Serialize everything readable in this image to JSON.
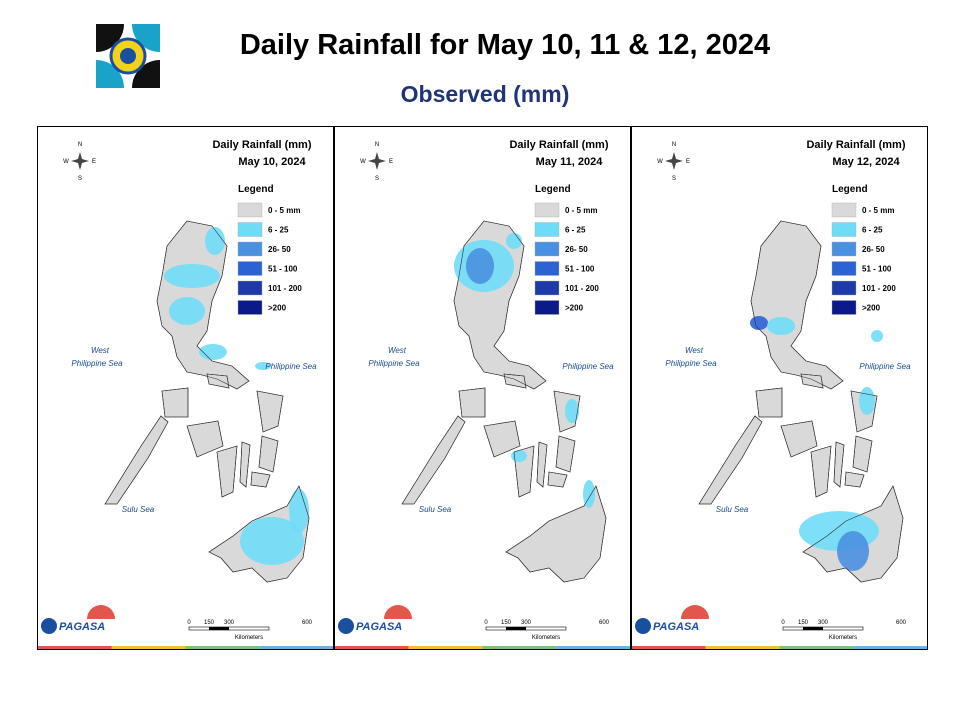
{
  "header": {
    "title": "Daily Rainfall for May 10, 11 & 12, 2024",
    "subtitle": "Observed (mm)"
  },
  "panels": [
    {
      "heading": "Daily Rainfall (mm)",
      "date": "May 10, 2024"
    },
    {
      "heading": "Daily Rainfall (mm)",
      "date": "May 11, 2024"
    },
    {
      "heading": "Daily Rainfall (mm)",
      "date": "May 12, 2024"
    }
  ],
  "legend": {
    "title": "Legend",
    "items": [
      {
        "label": "0 - 5 mm",
        "color": "#d9d9d9"
      },
      {
        "label": "6 - 25",
        "color": "#6fdcf7"
      },
      {
        "label": "26- 50",
        "color": "#4a90e0"
      },
      {
        "label": "51 - 100",
        "color": "#2b63d4"
      },
      {
        "label": "101 - 200",
        "color": "#1d3aa8"
      },
      {
        "label": ">200",
        "color": "#0b1a88"
      }
    ]
  },
  "seas": {
    "west": [
      "West",
      "Philippine Sea"
    ],
    "east": "Philippine Sea",
    "south": "Sulu Sea"
  },
  "compass": [
    "N",
    "S",
    "W",
    "E"
  ],
  "scale": {
    "ticks": [
      "0",
      "150",
      "300",
      "600"
    ],
    "unit": "Kilometers"
  },
  "logo": "PAGASA"
}
